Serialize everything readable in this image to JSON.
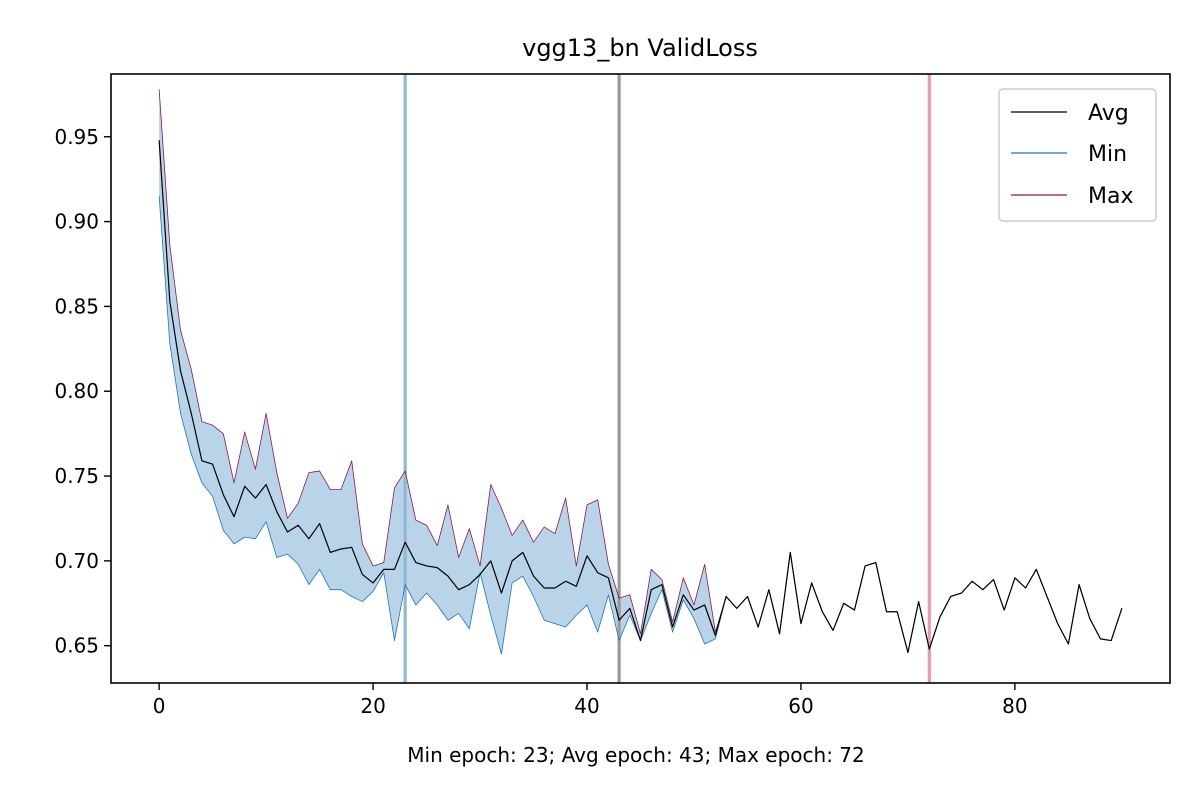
{
  "chart_data": {
    "type": "line",
    "title": "vgg13_bn ValidLoss",
    "xlabel": "Min epoch: 23; Avg epoch: 43; Max epoch: 72",
    "ylabel": "",
    "xlim": [
      -4.5,
      94.5
    ],
    "ylim": [
      0.628,
      0.987
    ],
    "xticks": [
      0,
      20,
      40,
      60,
      80
    ],
    "yticks": [
      0.65,
      0.7,
      0.75,
      0.8,
      0.85,
      0.9,
      0.95
    ],
    "ytick_labels": [
      "0.65",
      "0.70",
      "0.75",
      "0.80",
      "0.85",
      "0.90",
      "0.95"
    ],
    "grid": false,
    "legend_position": "top-right",
    "colors": {
      "avg": "#000000",
      "min": "#1f77b4",
      "max": "#8b1a4a",
      "band": "#b9d3e8"
    },
    "vlines": [
      {
        "x": 23,
        "color": "#8fb8d8"
      },
      {
        "x": 43,
        "color": "#9a9a9a"
      },
      {
        "x": 72,
        "color": "#e79ab5"
      }
    ],
    "series": [
      {
        "name": "Avg",
        "values": [
          0.948,
          0.853,
          0.812,
          0.787,
          0.759,
          0.757,
          0.739,
          0.726,
          0.744,
          0.737,
          0.745,
          0.729,
          0.717,
          0.721,
          0.713,
          0.722,
          0.705,
          0.707,
          0.708,
          0.692,
          0.687,
          0.695,
          0.695,
          0.711,
          0.699,
          0.697,
          0.696,
          0.691,
          0.683,
          0.686,
          0.692,
          0.7,
          0.681,
          0.7,
          0.705,
          0.691,
          0.684,
          0.684,
          0.688,
          0.685,
          0.703,
          0.693,
          0.69,
          0.665,
          0.672,
          0.653,
          0.683,
          0.686,
          0.661,
          0.68,
          0.671,
          0.674,
          0.656,
          0.679,
          0.672,
          0.679,
          0.661,
          0.683,
          0.657,
          0.705,
          0.663,
          0.687,
          0.67,
          0.659,
          0.675,
          0.671,
          0.697,
          0.699,
          0.67,
          0.67,
          0.646,
          0.676,
          0.648,
          0.667,
          0.679,
          0.681,
          0.688,
          0.683,
          0.689,
          0.671,
          0.69,
          0.684,
          0.695,
          0.679,
          0.663,
          0.651,
          0.686,
          0.666,
          0.654,
          0.653,
          0.672
        ]
      },
      {
        "name": "Min",
        "values": [
          0.915,
          0.828,
          0.787,
          0.763,
          0.746,
          0.738,
          0.718,
          0.71,
          0.714,
          0.713,
          0.723,
          0.702,
          0.704,
          0.698,
          0.686,
          0.695,
          0.683,
          0.683,
          0.679,
          0.676,
          0.682,
          0.693,
          0.653,
          0.686,
          0.674,
          0.681,
          0.674,
          0.665,
          0.669,
          0.66,
          0.693,
          0.668,
          0.645,
          0.687,
          0.691,
          0.679,
          0.665,
          0.663,
          0.661,
          0.668,
          0.674,
          0.658,
          0.68,
          0.653,
          0.668,
          0.653,
          0.669,
          0.683,
          0.658,
          0.677,
          0.666,
          0.651,
          0.654,
          0.679,
          0.672,
          0.679,
          0.661,
          0.683,
          0.657,
          0.705,
          0.663,
          0.687,
          0.67,
          0.659,
          0.675,
          0.671,
          0.697,
          0.699,
          0.67,
          0.67,
          0.646,
          0.676,
          0.648,
          0.667,
          0.679,
          0.681,
          0.688,
          0.683,
          0.689,
          0.671,
          0.69,
          0.684,
          0.695,
          0.679,
          0.663,
          0.651,
          0.686,
          0.666,
          0.654,
          0.653,
          0.672
        ]
      },
      {
        "name": "Max",
        "values": [
          0.978,
          0.886,
          0.836,
          0.813,
          0.782,
          0.78,
          0.775,
          0.746,
          0.776,
          0.754,
          0.787,
          0.752,
          0.725,
          0.734,
          0.752,
          0.753,
          0.742,
          0.742,
          0.759,
          0.71,
          0.697,
          0.699,
          0.743,
          0.753,
          0.724,
          0.721,
          0.709,
          0.733,
          0.702,
          0.719,
          0.697,
          0.745,
          0.731,
          0.715,
          0.724,
          0.711,
          0.72,
          0.716,
          0.737,
          0.697,
          0.733,
          0.736,
          0.698,
          0.678,
          0.68,
          0.657,
          0.695,
          0.689,
          0.664,
          0.69,
          0.674,
          0.698,
          0.658,
          0.679,
          0.672,
          0.679,
          0.661,
          0.683,
          0.657,
          0.705,
          0.663,
          0.687,
          0.67,
          0.659,
          0.675,
          0.671,
          0.697,
          0.699,
          0.67,
          0.67,
          0.646,
          0.676,
          0.648,
          0.667,
          0.679,
          0.681,
          0.688,
          0.683,
          0.689,
          0.671,
          0.69,
          0.684,
          0.695,
          0.679,
          0.663,
          0.651,
          0.686,
          0.666,
          0.654,
          0.653,
          0.672
        ]
      }
    ]
  }
}
